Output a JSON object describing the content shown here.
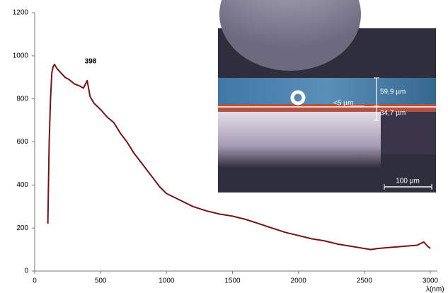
{
  "chart_data": {
    "type": "line",
    "x_label": "λ(nm)",
    "annotation": "398",
    "color": "#7a1212",
    "x": [
      100,
      110,
      120,
      130,
      140,
      150,
      170,
      200,
      230,
      260,
      300,
      340,
      370,
      398,
      420,
      450,
      500,
      550,
      600,
      650,
      700,
      750,
      800,
      850,
      900,
      950,
      1000,
      1100,
      1200,
      1300,
      1400,
      1500,
      1600,
      1700,
      1800,
      1900,
      2000,
      2100,
      2200,
      2300,
      2400,
      2500,
      2550,
      2600,
      2700,
      2800,
      2900,
      2950,
      2980,
      3000
    ],
    "values": [
      220,
      600,
      800,
      920,
      950,
      960,
      940,
      920,
      900,
      890,
      870,
      860,
      850,
      885,
      810,
      780,
      750,
      715,
      690,
      640,
      600,
      550,
      510,
      470,
      430,
      390,
      360,
      330,
      300,
      280,
      265,
      255,
      240,
      220,
      200,
      180,
      165,
      150,
      140,
      125,
      115,
      105,
      100,
      105,
      110,
      115,
      120,
      135,
      115,
      105
    ],
    "xlim": [
      0,
      3000
    ],
    "xticks": [
      0,
      500,
      1000,
      1500,
      2000,
      2500,
      3000
    ],
    "ylim": [
      0,
      1200
    ],
    "yticks": [
      0,
      200,
      400,
      600,
      800,
      1000,
      1200
    ]
  },
  "inset": {
    "upper_layer": "59,9 µm",
    "lower_layer": "34,7 µm",
    "thin_layer": "<5 µm",
    "scale_bar": "100 µm"
  }
}
